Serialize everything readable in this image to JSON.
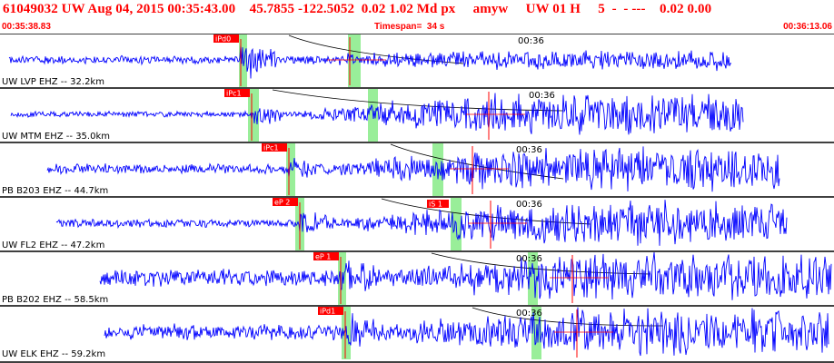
{
  "header": {
    "event_line": "61049032 UW Aug 04, 2015 00:35:43.00    45.7855 -122.5052  0.02 1.02 Md px     amyw     UW 01 H     5  -  - ---    0.02 0.00",
    "start_time": "00:35:38.83",
    "timespan": "Timespan=  34 s",
    "end_time": "00:36:13.06"
  },
  "colors": {
    "header_text": "#ff0000",
    "trace": "#0000ff",
    "pick": "#ff0000",
    "window_highlight": "#99ee99",
    "moveout_curve": "#000000"
  },
  "time_marker": "00:36",
  "channels": [
    {
      "label": "UW LVP EHZ -- 32.2km",
      "p_pick": "iPd0",
      "s_pick": ""
    },
    {
      "label": "UW MTM EHZ -- 35.0km",
      "p_pick": "iPc1",
      "s_pick": ""
    },
    {
      "label": "PB B203 EHZ -- 44.7km",
      "p_pick": "iPc1",
      "s_pick": ""
    },
    {
      "label": "UW FL2 EHZ -- 47.2km",
      "p_pick": "eP 2",
      "s_pick": "iS 1"
    },
    {
      "label": "PB B202 EHZ -- 58.5km",
      "p_pick": "eP 1",
      "s_pick": ""
    },
    {
      "label": "UW ELK EHZ -- 59.2km",
      "p_pick": "iPd1",
      "s_pick": ""
    }
  ]
}
